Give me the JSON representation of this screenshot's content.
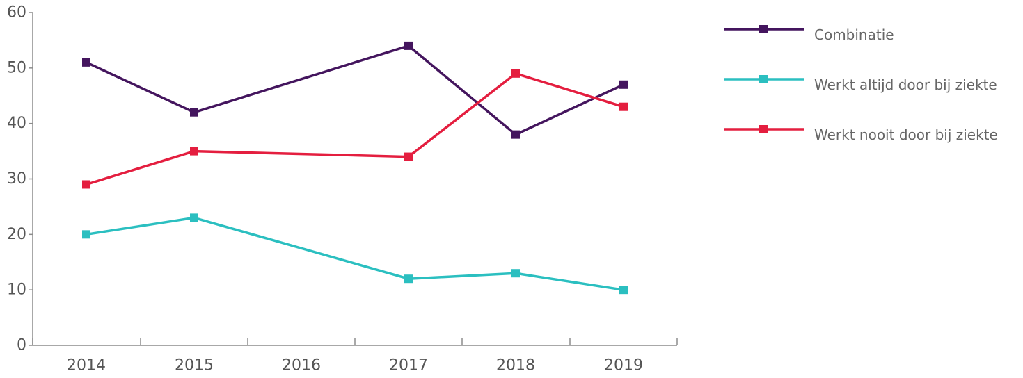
{
  "chart_data": {
    "type": "line",
    "title": "",
    "xlabel": "",
    "ylabel": "",
    "x": [
      "2014",
      "2015",
      "2016",
      "2017",
      "2018",
      "2019"
    ],
    "y_ticks": [
      0,
      10,
      20,
      30,
      40,
      50,
      60
    ],
    "ylim": [
      0,
      60
    ],
    "grid": false,
    "legend_position": "right",
    "series": [
      {
        "name": "Combinatie",
        "color": "#44155e",
        "points": [
          {
            "x": "2014",
            "y": 51
          },
          {
            "x": "2015",
            "y": 42
          },
          {
            "x": "2017",
            "y": 54
          },
          {
            "x": "2018",
            "y": 38
          },
          {
            "x": "2019",
            "y": 47
          }
        ]
      },
      {
        "name": "Werkt altijd door bij ziekte",
        "color": "#2bbfc0",
        "points": [
          {
            "x": "2014",
            "y": 20
          },
          {
            "x": "2015",
            "y": 23
          },
          {
            "x": "2017",
            "y": 12
          },
          {
            "x": "2018",
            "y": 13
          },
          {
            "x": "2019",
            "y": 10
          }
        ]
      },
      {
        "name": "Werkt nooit door bij ziekte",
        "color": "#e41e3f",
        "points": [
          {
            "x": "2014",
            "y": 29
          },
          {
            "x": "2015",
            "y": 35
          },
          {
            "x": "2017",
            "y": 34
          },
          {
            "x": "2018",
            "y": 49
          },
          {
            "x": "2019",
            "y": 43
          }
        ]
      }
    ]
  }
}
